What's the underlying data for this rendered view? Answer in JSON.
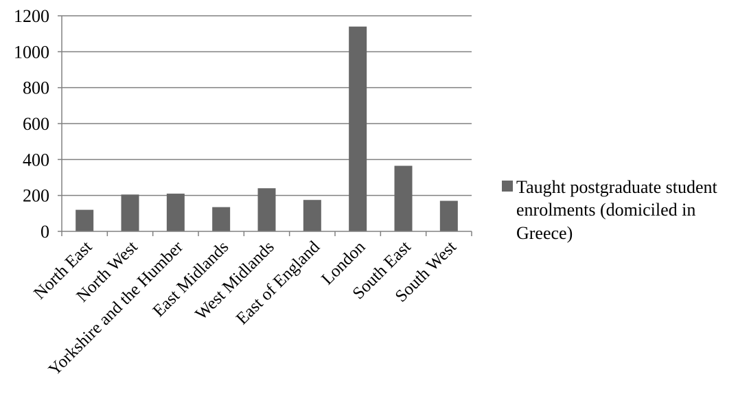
{
  "chart_data": {
    "type": "bar",
    "categories": [
      "North East",
      "North West",
      "Yorkshire and the Humber",
      "East Midlands",
      "West Midlands",
      "East of England",
      "London",
      "South East",
      "South West"
    ],
    "series": [
      {
        "name": "Taught postgraduate student enrolments (domiciled in Greece)",
        "legend_lines": [
          "Taught postgraduate student",
          "enrolments (domiciled in",
          "Greece)"
        ],
        "color": "#666666",
        "values": [
          120,
          205,
          210,
          135,
          240,
          175,
          1140,
          365,
          170
        ]
      }
    ],
    "yticks": [
      0,
      200,
      400,
      600,
      800,
      1000,
      1200
    ],
    "ylim": [
      0,
      1200
    ],
    "grid": true,
    "legend_position": "right",
    "title": "",
    "xlabel": "",
    "ylabel": ""
  }
}
